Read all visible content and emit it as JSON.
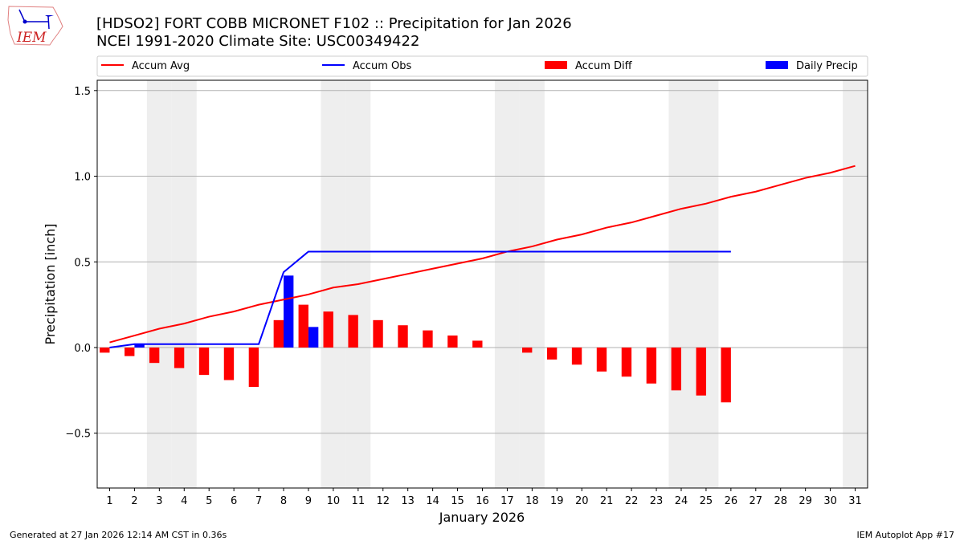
{
  "header": {
    "title": "[HDSO2] FORT COBB MICRONET F102 :: Precipitation for Jan 2026",
    "subtitle": "NCEI 1991-2020 Climate Site: USC00349422",
    "logo_text": "IEM"
  },
  "footer": {
    "generated": "Generated at 27 Jan 2026 12:14 AM CST in 0.36s",
    "app": "IEM Autoplot App #17"
  },
  "chart_data": {
    "type": "bar",
    "xlabel": "January 2026",
    "ylabel": "Precipitation [inch]",
    "ylim": [
      -0.82,
      1.56
    ],
    "xlim": [
      0.5,
      31.5
    ],
    "yticks": [
      -0.5,
      0.0,
      0.5,
      1.0,
      1.5
    ],
    "ytick_labels": [
      "−0.5",
      "0.0",
      "0.5",
      "1.0",
      "1.5"
    ],
    "grid": "horizontal",
    "legend_position": "top",
    "weekend_days": [
      3,
      4,
      10,
      11,
      17,
      18,
      24,
      25,
      31
    ],
    "days": [
      1,
      2,
      3,
      4,
      5,
      6,
      7,
      8,
      9,
      10,
      11,
      12,
      13,
      14,
      15,
      16,
      17,
      18,
      19,
      20,
      21,
      22,
      23,
      24,
      25,
      26,
      27,
      28,
      29,
      30,
      31
    ],
    "series": [
      {
        "name": "Accum Avg",
        "kind": "line",
        "color": "#ff0000",
        "values": [
          0.03,
          0.07,
          0.11,
          0.14,
          0.18,
          0.21,
          0.25,
          0.28,
          0.31,
          0.35,
          0.37,
          0.4,
          0.43,
          0.46,
          0.49,
          0.52,
          0.56,
          0.59,
          0.63,
          0.66,
          0.7,
          0.73,
          0.77,
          0.81,
          0.84,
          0.88,
          0.91,
          0.95,
          0.99,
          1.02,
          1.06
        ]
      },
      {
        "name": "Accum Obs",
        "kind": "line",
        "color": "#0000ff",
        "values": [
          0.0,
          0.02,
          0.02,
          0.02,
          0.02,
          0.02,
          0.02,
          0.44,
          0.56,
          0.56,
          0.56,
          0.56,
          0.56,
          0.56,
          0.56,
          0.56,
          0.56,
          0.56,
          0.56,
          0.56,
          0.56,
          0.56,
          0.56,
          0.56,
          0.56,
          0.56
        ]
      },
      {
        "name": "Accum Diff",
        "kind": "bar",
        "color": "#ff0000",
        "values": [
          -0.03,
          -0.05,
          -0.09,
          -0.12,
          -0.16,
          -0.19,
          -0.23,
          0.16,
          0.25,
          0.21,
          0.19,
          0.16,
          0.13,
          0.1,
          0.07,
          0.04,
          0.0,
          -0.03,
          -0.07,
          -0.1,
          -0.14,
          -0.17,
          -0.21,
          -0.25,
          -0.28,
          -0.32
        ]
      },
      {
        "name": "Daily Precip",
        "kind": "bar",
        "color": "#0000ff",
        "values": [
          0,
          0.02,
          0,
          0,
          0,
          0,
          0,
          0.42,
          0.12,
          0,
          0,
          0,
          0,
          0,
          0,
          0,
          0,
          0,
          0,
          0,
          0,
          0,
          0,
          0,
          0,
          0
        ]
      }
    ]
  }
}
